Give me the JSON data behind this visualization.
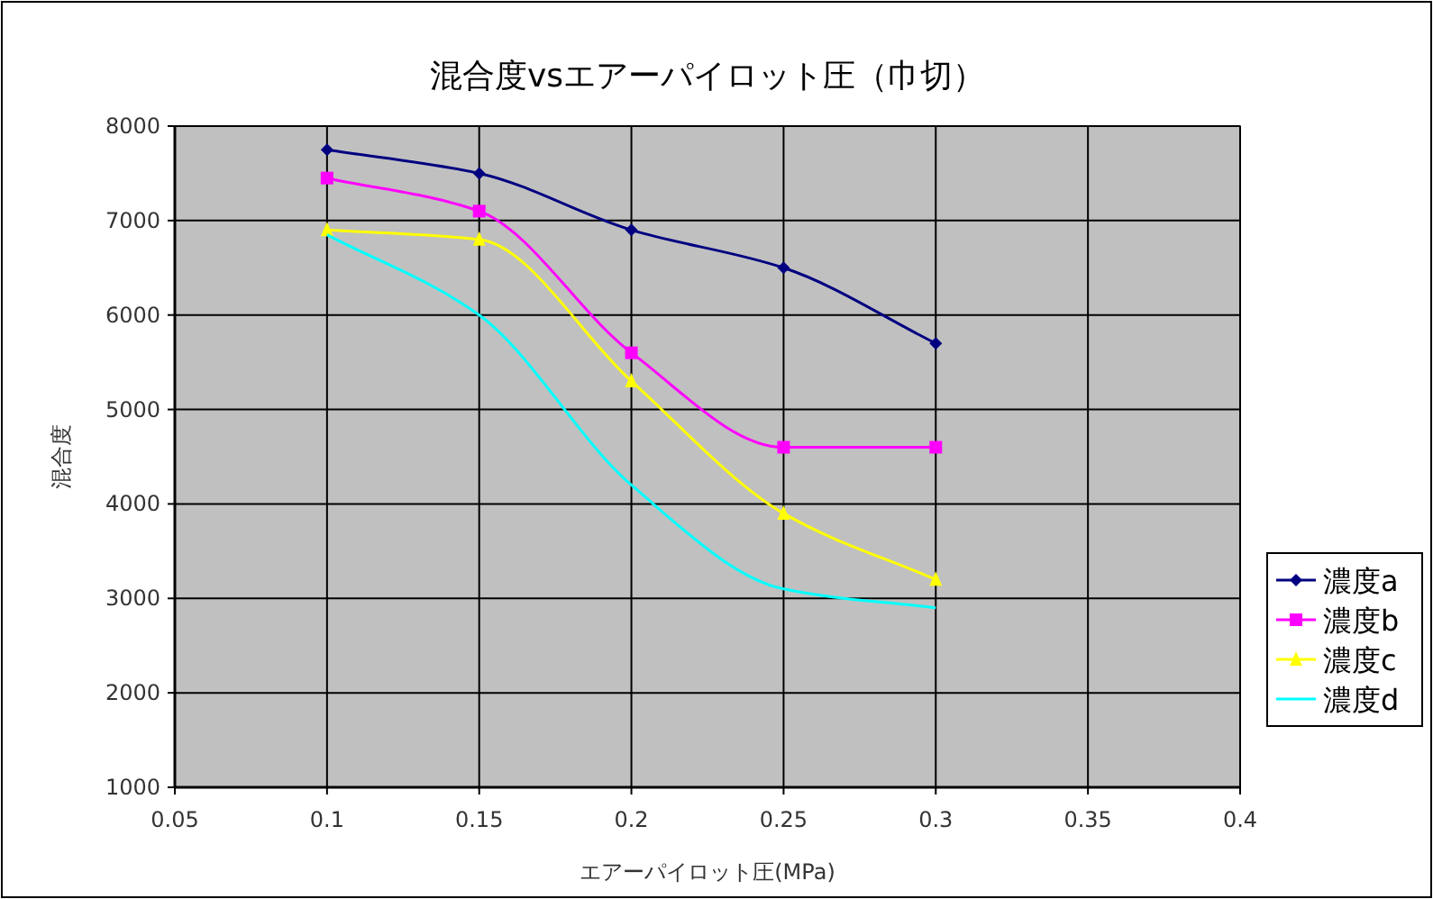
{
  "chart_data": {
    "type": "line",
    "title": "混合度vsエアーパイロット圧（巾切）",
    "xlabel": "エアーパイロット圧(MPa)",
    "ylabel": "混合度",
    "x": [
      0.1,
      0.15,
      0.2,
      0.25,
      0.3
    ],
    "series": [
      {
        "name": "濃度a",
        "color": "#000080",
        "marker": "diamond",
        "values": [
          7750,
          7500,
          6900,
          6500,
          5700
        ]
      },
      {
        "name": "濃度b",
        "color": "#ff00ff",
        "marker": "square",
        "values": [
          7450,
          7100,
          5600,
          4600,
          4600
        ]
      },
      {
        "name": "濃度c",
        "color": "#ffff00",
        "marker": "triangle",
        "values": [
          6900,
          6800,
          5300,
          3900,
          3200
        ]
      },
      {
        "name": "濃度d",
        "color": "#00ffff",
        "marker": "none",
        "values": [
          6850,
          6000,
          4200,
          3100,
          2900
        ]
      }
    ],
    "xlim": [
      0.05,
      0.4
    ],
    "xticks": [
      0.05,
      0.1,
      0.15,
      0.2,
      0.25,
      0.3,
      0.35,
      0.4
    ],
    "ylim": [
      1000,
      8000
    ],
    "yticks": [
      1000,
      2000,
      3000,
      4000,
      5000,
      6000,
      7000,
      8000
    ],
    "grid": true,
    "legend": "right",
    "line_style": "solid"
  }
}
